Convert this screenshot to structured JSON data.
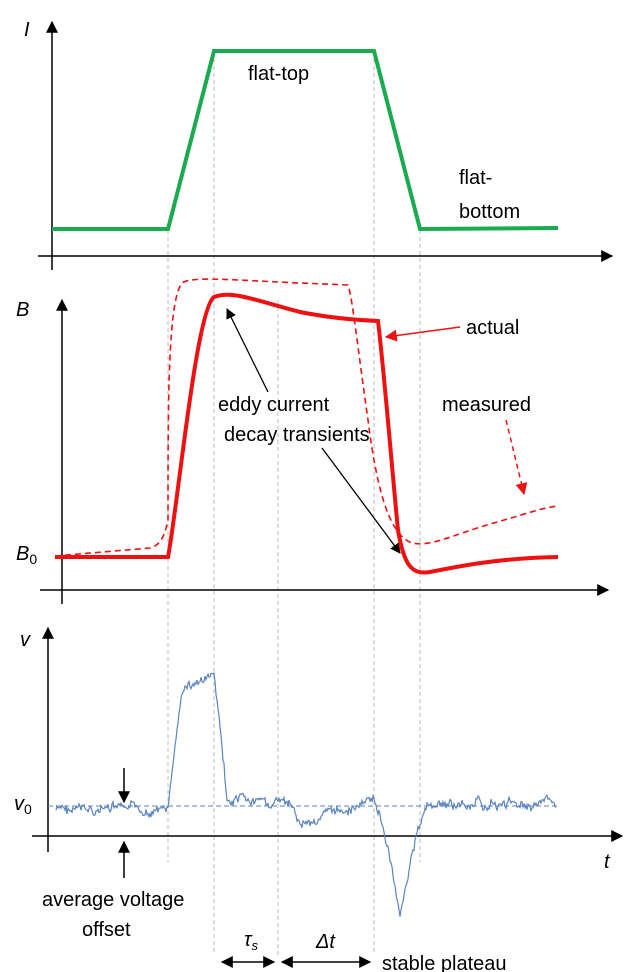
{
  "panels": {
    "current": {
      "axis_label": "I",
      "flat_top_label": "flat-top",
      "flat_bottom_label_1": "flat-",
      "flat_bottom_label_2": "bottom",
      "color": "#1aaa50"
    },
    "field": {
      "axis_label": "B",
      "baseline_label": "B",
      "baseline_sub": "0",
      "actual_label": "actual",
      "measured_label": "measured",
      "eddy_label_1": "eddy current",
      "eddy_label_2": "decay transients",
      "color": "#ee1111"
    },
    "voltage": {
      "axis_label": "v",
      "offset_label": "v",
      "offset_sub": "0",
      "time_label": "t",
      "avg_offset_1": "average voltage",
      "avg_offset_2": "offset",
      "tau_label": "τ",
      "tau_sub": "s",
      "dt_label": "Δt",
      "plateau_label": "stable plateau",
      "color": "#5b84bf"
    }
  }
}
